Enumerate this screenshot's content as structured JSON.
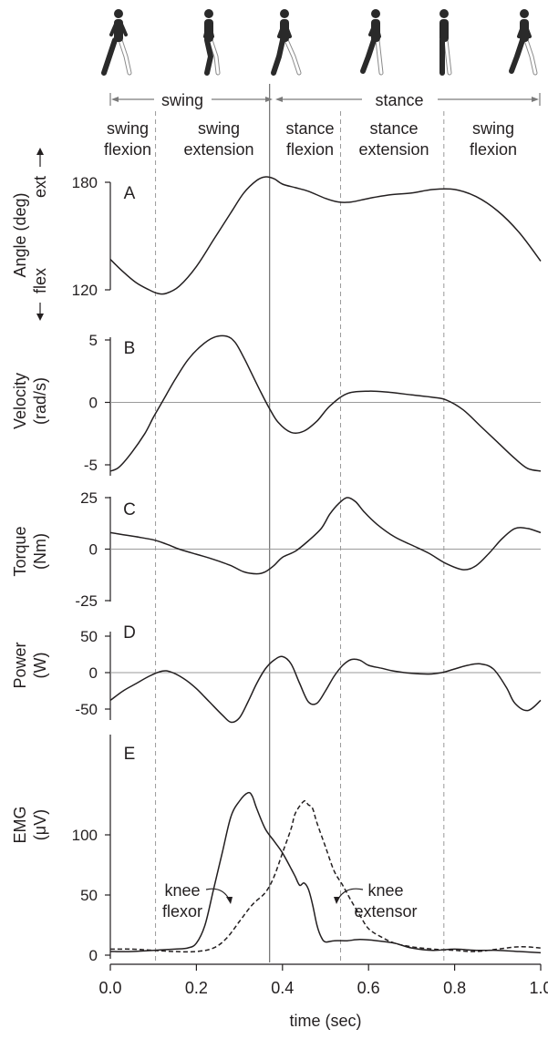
{
  "figure": {
    "phase_bar": {
      "swing": "swing",
      "stance": "stance"
    },
    "subphases": [
      {
        "line1": "swing",
        "line2": "flexion"
      },
      {
        "line1": "swing",
        "line2": "extension"
      },
      {
        "line1": "stance",
        "line2": "flexion"
      },
      {
        "line1": "stance",
        "line2": "extension"
      },
      {
        "line1": "swing",
        "line2": "flexion"
      }
    ],
    "phase_boundaries": [
      0.105,
      0.37,
      0.535,
      0.775
    ],
    "colors": {
      "line": "#231f20",
      "grid": "#9a9a9a",
      "figure_fill": "#2a2a2a",
      "figure_outline": "#8a8a8a"
    }
  },
  "chart_data": [
    {
      "type": "line",
      "panel_label": "A",
      "ylabel": "Angle (deg)",
      "ylabel_top": "ext",
      "ylabel_bottom": "flex",
      "yticks": [
        "180",
        "120"
      ],
      "ytick_values": [
        180,
        120
      ],
      "ylim": [
        120,
        180
      ],
      "zero_line": false,
      "series": [
        {
          "style": "solid",
          "x": [
            0.0,
            0.03,
            0.06,
            0.09,
            0.11,
            0.13,
            0.16,
            0.2,
            0.24,
            0.28,
            0.31,
            0.34,
            0.36,
            0.38,
            0.4,
            0.43,
            0.46,
            0.5,
            0.53,
            0.56,
            0.6,
            0.65,
            0.7,
            0.75,
            0.8,
            0.85,
            0.9,
            0.95,
            1.0
          ],
          "y": [
            137,
            130,
            124,
            120,
            118,
            118,
            122,
            133,
            148,
            163,
            174,
            181,
            183,
            182,
            179,
            177,
            175,
            171,
            169,
            169,
            171,
            173,
            174,
            176,
            176,
            172,
            164,
            152,
            136
          ]
        }
      ]
    },
    {
      "type": "line",
      "panel_label": "B",
      "ylabel": "Velocity",
      "ylabel2": "(rad/s)",
      "yticks": [
        "5",
        "0",
        "-5"
      ],
      "ytick_values": [
        5,
        0,
        -5
      ],
      "ylim": [
        -5.5,
        6.8
      ],
      "zero_line": true,
      "series": [
        {
          "style": "solid",
          "x": [
            0.0,
            0.02,
            0.05,
            0.08,
            0.1,
            0.12,
            0.15,
            0.18,
            0.21,
            0.24,
            0.27,
            0.29,
            0.31,
            0.33,
            0.35,
            0.37,
            0.39,
            0.42,
            0.45,
            0.48,
            0.51,
            0.55,
            0.6,
            0.65,
            0.7,
            0.75,
            0.78,
            0.82,
            0.86,
            0.9,
            0.94,
            0.97,
            1.0
          ],
          "y": [
            -5.5,
            -5.2,
            -4.0,
            -2.5,
            -1.2,
            0.0,
            1.8,
            3.4,
            4.5,
            5.2,
            5.3,
            4.8,
            3.6,
            2.2,
            0.8,
            -0.5,
            -1.6,
            -2.4,
            -2.3,
            -1.5,
            -0.3,
            0.7,
            0.9,
            0.8,
            0.6,
            0.4,
            0.2,
            -0.6,
            -1.9,
            -3.2,
            -4.5,
            -5.3,
            -5.5
          ]
        }
      ]
    },
    {
      "type": "line",
      "panel_label": "C",
      "ylabel": "Torque",
      "ylabel2": "(Nm)",
      "yticks": [
        "25",
        "0",
        "-25"
      ],
      "ytick_values": [
        25,
        0,
        -25
      ],
      "ylim": [
        -28,
        28
      ],
      "zero_line": true,
      "series": [
        {
          "style": "solid",
          "x": [
            0.0,
            0.03,
            0.06,
            0.1,
            0.13,
            0.16,
            0.2,
            0.24,
            0.28,
            0.31,
            0.34,
            0.36,
            0.38,
            0.4,
            0.43,
            0.46,
            0.49,
            0.51,
            0.53,
            0.55,
            0.57,
            0.59,
            0.62,
            0.66,
            0.7,
            0.74,
            0.78,
            0.82,
            0.85,
            0.88,
            0.91,
            0.94,
            0.97,
            1.0
          ],
          "y": [
            8,
            7,
            6,
            4.5,
            2.5,
            0,
            -2.5,
            -5,
            -8,
            -11,
            -12,
            -11,
            -8,
            -4,
            -1,
            4,
            10,
            17,
            22,
            25,
            23,
            18,
            12,
            6,
            2,
            -2,
            -7,
            -10,
            -8,
            -2,
            5,
            10,
            10,
            8
          ]
        }
      ]
    },
    {
      "type": "line",
      "panel_label": "D",
      "ylabel": "Power",
      "ylabel2": "(W)",
      "yticks": [
        "50",
        "0",
        "-50"
      ],
      "ytick_values": [
        50,
        0,
        -50
      ],
      "ylim": [
        -68,
        58
      ],
      "zero_line": true,
      "series": [
        {
          "style": "solid",
          "x": [
            0.0,
            0.03,
            0.06,
            0.09,
            0.12,
            0.14,
            0.17,
            0.2,
            0.23,
            0.26,
            0.28,
            0.3,
            0.32,
            0.34,
            0.36,
            0.38,
            0.4,
            0.42,
            0.44,
            0.46,
            0.48,
            0.5,
            0.52,
            0.54,
            0.56,
            0.58,
            0.6,
            0.63,
            0.66,
            0.7,
            0.74,
            0.77,
            0.8,
            0.83,
            0.86,
            0.89,
            0.92,
            0.94,
            0.97,
            1.0
          ],
          "y": [
            -38,
            -25,
            -15,
            -5,
            2,
            1,
            -8,
            -22,
            -40,
            -58,
            -68,
            -62,
            -40,
            -15,
            5,
            17,
            22,
            12,
            -15,
            -40,
            -42,
            -25,
            -5,
            10,
            18,
            17,
            10,
            6,
            2,
            -1,
            -2,
            0,
            5,
            10,
            12,
            5,
            -20,
            -42,
            -52,
            -38
          ]
        }
      ]
    },
    {
      "type": "line",
      "panel_label": "E",
      "ylabel": "EMG",
      "ylabel2": "(μV)",
      "yticks": [
        "100",
        "50",
        "0"
      ],
      "ytick_values": [
        100,
        50,
        0
      ],
      "ylim": [
        -8,
        140
      ],
      "zero_line": false,
      "annotations": [
        {
          "line1": "knee",
          "line2": "flexor"
        },
        {
          "line1": "knee",
          "line2": "extensor"
        }
      ],
      "series": [
        {
          "style": "solid",
          "x": [
            0.0,
            0.05,
            0.1,
            0.15,
            0.18,
            0.2,
            0.22,
            0.24,
            0.26,
            0.28,
            0.3,
            0.32,
            0.33,
            0.34,
            0.36,
            0.38,
            0.4,
            0.42,
            0.43,
            0.44,
            0.45,
            0.46,
            0.47,
            0.48,
            0.49,
            0.5,
            0.52,
            0.55,
            0.58,
            0.62,
            0.66,
            0.7,
            0.75,
            0.8,
            0.85,
            0.9,
            0.95,
            1.0
          ],
          "y": [
            3,
            3,
            4,
            5,
            6,
            10,
            25,
            55,
            85,
            115,
            128,
            135,
            132,
            122,
            105,
            95,
            85,
            72,
            65,
            58,
            60,
            55,
            42,
            25,
            15,
            11,
            12,
            12,
            13,
            12,
            10,
            6,
            4,
            5,
            4,
            4,
            3,
            2
          ]
        },
        {
          "style": "dashed",
          "x": [
            0.0,
            0.05,
            0.1,
            0.15,
            0.2,
            0.24,
            0.27,
            0.3,
            0.33,
            0.36,
            0.38,
            0.4,
            0.42,
            0.43,
            0.45,
            0.46,
            0.47,
            0.48,
            0.5,
            0.52,
            0.54,
            0.56,
            0.58,
            0.6,
            0.63,
            0.66,
            0.7,
            0.75,
            0.8,
            0.85,
            0.9,
            0.95,
            1.0
          ],
          "y": [
            5,
            5,
            4,
            3,
            3,
            6,
            14,
            28,
            42,
            52,
            65,
            85,
            105,
            118,
            128,
            125,
            122,
            110,
            90,
            70,
            58,
            45,
            33,
            22,
            15,
            10,
            7,
            5,
            4,
            3,
            5,
            7,
            6
          ]
        }
      ]
    }
  ],
  "xaxis": {
    "label": "time (sec)",
    "tick_values": [
      0.0,
      0.2,
      0.4,
      0.6,
      0.8,
      1.0
    ],
    "tick_labels": [
      "0.0",
      "0.2",
      "0.4",
      "0.6",
      "0.8",
      "1.0"
    ],
    "xlim": [
      0,
      1.0
    ]
  }
}
